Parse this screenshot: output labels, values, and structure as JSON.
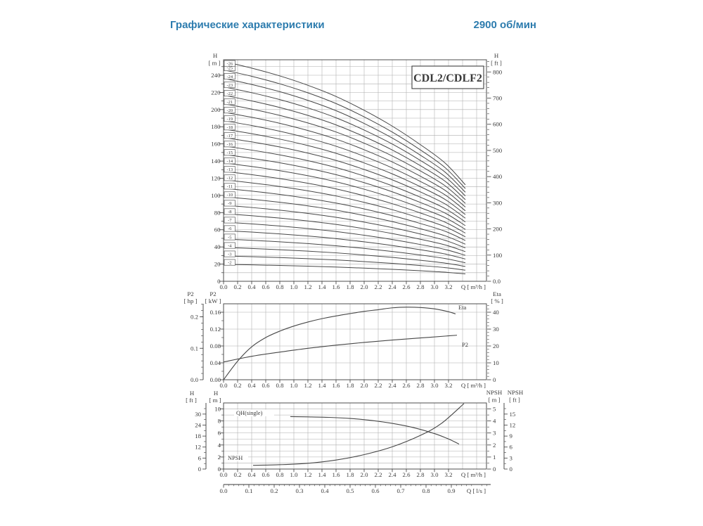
{
  "header": {
    "title": "Графические характеристики",
    "rpm": "2900 об/мин"
  },
  "colors": {
    "accent": "#2d7cae",
    "ink": "#3a3a3a",
    "grid": "#adadad",
    "curve": "#474747",
    "border": "#4d4d4d",
    "background": "#ffffff"
  },
  "chart_data": [
    {
      "id": "head-curves",
      "type": "line",
      "title": "CDL2/CDLF2",
      "x": {
        "label": "Q [ m³/h ]",
        "tick_labels": [
          "0.0",
          "0.2",
          "0.4",
          "0.6",
          "0.8",
          "1.0",
          "1.2",
          "1.4",
          "1.6",
          "1.8",
          "2.0",
          "2.2",
          "2.4",
          "2.6",
          "2.8",
          "3.0",
          "3.2"
        ],
        "range": [
          0,
          3.74
        ],
        "grid_step": 0.2
      },
      "y_left": {
        "title_lines": [
          "H",
          "[ m ]"
        ],
        "tick_labels": [
          "0",
          "20",
          "40",
          "60",
          "80",
          "100",
          "120",
          "140",
          "160",
          "180",
          "200",
          "220",
          "240"
        ],
        "range": [
          0,
          258
        ],
        "grid_step": 10,
        "minor_step": 10
      },
      "y_right": {
        "title_lines": [
          "H",
          "[ ft ]"
        ],
        "tick_labels": [
          "0.0",
          "100",
          "200",
          "300",
          "400",
          "500",
          "600",
          "700",
          "800"
        ],
        "minor_step": 20
      },
      "stage_curves": {
        "stages": [
          2,
          3,
          4,
          5,
          6,
          7,
          8,
          9,
          10,
          11,
          12,
          13,
          14,
          15,
          16,
          17,
          18,
          19,
          20,
          21,
          22,
          23,
          24,
          25,
          26
        ],
        "label_prefix": "-",
        "q": [
          0,
          0.4,
          0.8,
          1.2,
          1.6,
          2.0,
          2.4,
          2.8,
          3.15,
          3.44
        ],
        "head_per_stage": [
          9.85,
          9.55,
          9.2,
          8.78,
          8.28,
          7.66,
          6.95,
          6.12,
          5.3,
          4.32
        ]
      }
    },
    {
      "id": "power-efficiency",
      "type": "line",
      "x": {
        "label": "Q [ m³/h ]",
        "tick_labels": [
          "0.0",
          "0.2",
          "0.4",
          "0.6",
          "0.8",
          "1.0",
          "1.2",
          "1.4",
          "1.6",
          "1.8",
          "2.0",
          "2.2",
          "2.4",
          "2.6",
          "2.8",
          "3.0",
          "3.2"
        ],
        "range": [
          0,
          3.74
        ],
        "grid_step": 0.2
      },
      "y_hp": {
        "title_lines": [
          "P2",
          "[ hp ]"
        ],
        "tick_labels": [
          "0.0",
          "0.1",
          "0.2"
        ],
        "minor_step": 0.02
      },
      "y_kw": {
        "title_lines": [
          "P2",
          "[ kW ]"
        ],
        "tick_labels": [
          "0.00",
          "0.04",
          "0.08",
          "0.12",
          "0.16"
        ],
        "range": [
          0,
          0.18
        ],
        "grid_step": 0.04,
        "minor_step": 0.02
      },
      "y_eta": {
        "title_lines": [
          "Eta",
          "[ % ]"
        ],
        "tick_labels": [
          "0",
          "10",
          "20",
          "30",
          "40"
        ],
        "range": [
          0,
          45
        ],
        "minor_step": 2
      },
      "series": [
        {
          "name": "P2",
          "axis": "kw",
          "q": [
            0,
            0.4,
            0.8,
            1.2,
            1.6,
            2.0,
            2.4,
            2.8,
            3.2,
            3.32
          ],
          "v": [
            0.042,
            0.0555,
            0.0655,
            0.0745,
            0.082,
            0.0885,
            0.094,
            0.099,
            0.104,
            0.1055
          ]
        },
        {
          "name": "Eta",
          "axis": "eta",
          "q": [
            0,
            0.2,
            0.4,
            0.6,
            0.8,
            1.0,
            1.2,
            1.4,
            1.6,
            1.8,
            2.0,
            2.2,
            2.4,
            2.6,
            2.8,
            3.0,
            3.2,
            3.3
          ],
          "v": [
            0,
            11,
            19.5,
            25,
            28.8,
            31.8,
            34.2,
            36.2,
            37.8,
            39.2,
            40.5,
            41.5,
            42.6,
            43,
            42.8,
            42,
            40.3,
            39
          ]
        }
      ]
    },
    {
      "id": "single-stage-npsh",
      "type": "line",
      "x": {
        "label": "Q [ m³/h ]",
        "tick_labels": [
          "0.0",
          "0.2",
          "0.4",
          "0.6",
          "0.8",
          "1.0",
          "1.2",
          "1.4",
          "1.6",
          "1.8",
          "2.0",
          "2.2",
          "2.4",
          "2.6",
          "2.8",
          "3.0",
          "3.2"
        ],
        "range": [
          0,
          3.74
        ],
        "grid_step": 0.2
      },
      "x2": {
        "label": "Q [ l/s ]",
        "tick_labels": [
          "0.0",
          "0.1",
          "0.2",
          "0.3",
          "0.4",
          "0.5",
          "0.6",
          "0.7",
          "0.8",
          "0.9"
        ],
        "m3h_per_ls": 3.6,
        "minor_step": 0.02
      },
      "y_ft": {
        "title_lines": [
          "H",
          "[ ft ]"
        ],
        "tick_labels": [
          "0",
          "6",
          "12",
          "18",
          "24",
          "30"
        ],
        "minor_step": 3
      },
      "y_m": {
        "title_lines": [
          "H",
          "[ m ]"
        ],
        "tick_labels": [
          "0",
          "2",
          "4",
          "6",
          "8",
          "10"
        ],
        "range": [
          0,
          11
        ],
        "grid_step": 1,
        "minor_step": 1
      },
      "y_npsh_m": {
        "title_lines": [
          "NPSH",
          "[ m ]"
        ],
        "tick_labels": [
          "0",
          "1",
          "2",
          "3",
          "4",
          "5"
        ],
        "range": [
          0,
          5.5
        ],
        "minor_step": 0.5
      },
      "y_npsh_ft": {
        "title_lines": [
          "NPSH",
          "[ ft ]"
        ],
        "tick_labels": [
          "0",
          "3",
          "6",
          "9",
          "12",
          "15"
        ],
        "minor_step": 1.5
      },
      "series": [
        {
          "name": "QH(single)",
          "axis": "m",
          "q": [
            0.95,
            1.2,
            1.5,
            1.8,
            2.1,
            2.4,
            2.7,
            3.0,
            3.2,
            3.35
          ],
          "v": [
            8.72,
            8.68,
            8.6,
            8.42,
            8.1,
            7.6,
            6.9,
            5.9,
            5.0,
            4.15
          ]
        },
        {
          "name": "NPSH",
          "axis": "npsh_m",
          "q": [
            0.42,
            0.8,
            1.2,
            1.6,
            2.0,
            2.4,
            2.8,
            3.1,
            3.42
          ],
          "v": [
            0.31,
            0.36,
            0.48,
            0.75,
            1.2,
            1.85,
            2.8,
            3.8,
            5.45
          ]
        }
      ]
    }
  ]
}
